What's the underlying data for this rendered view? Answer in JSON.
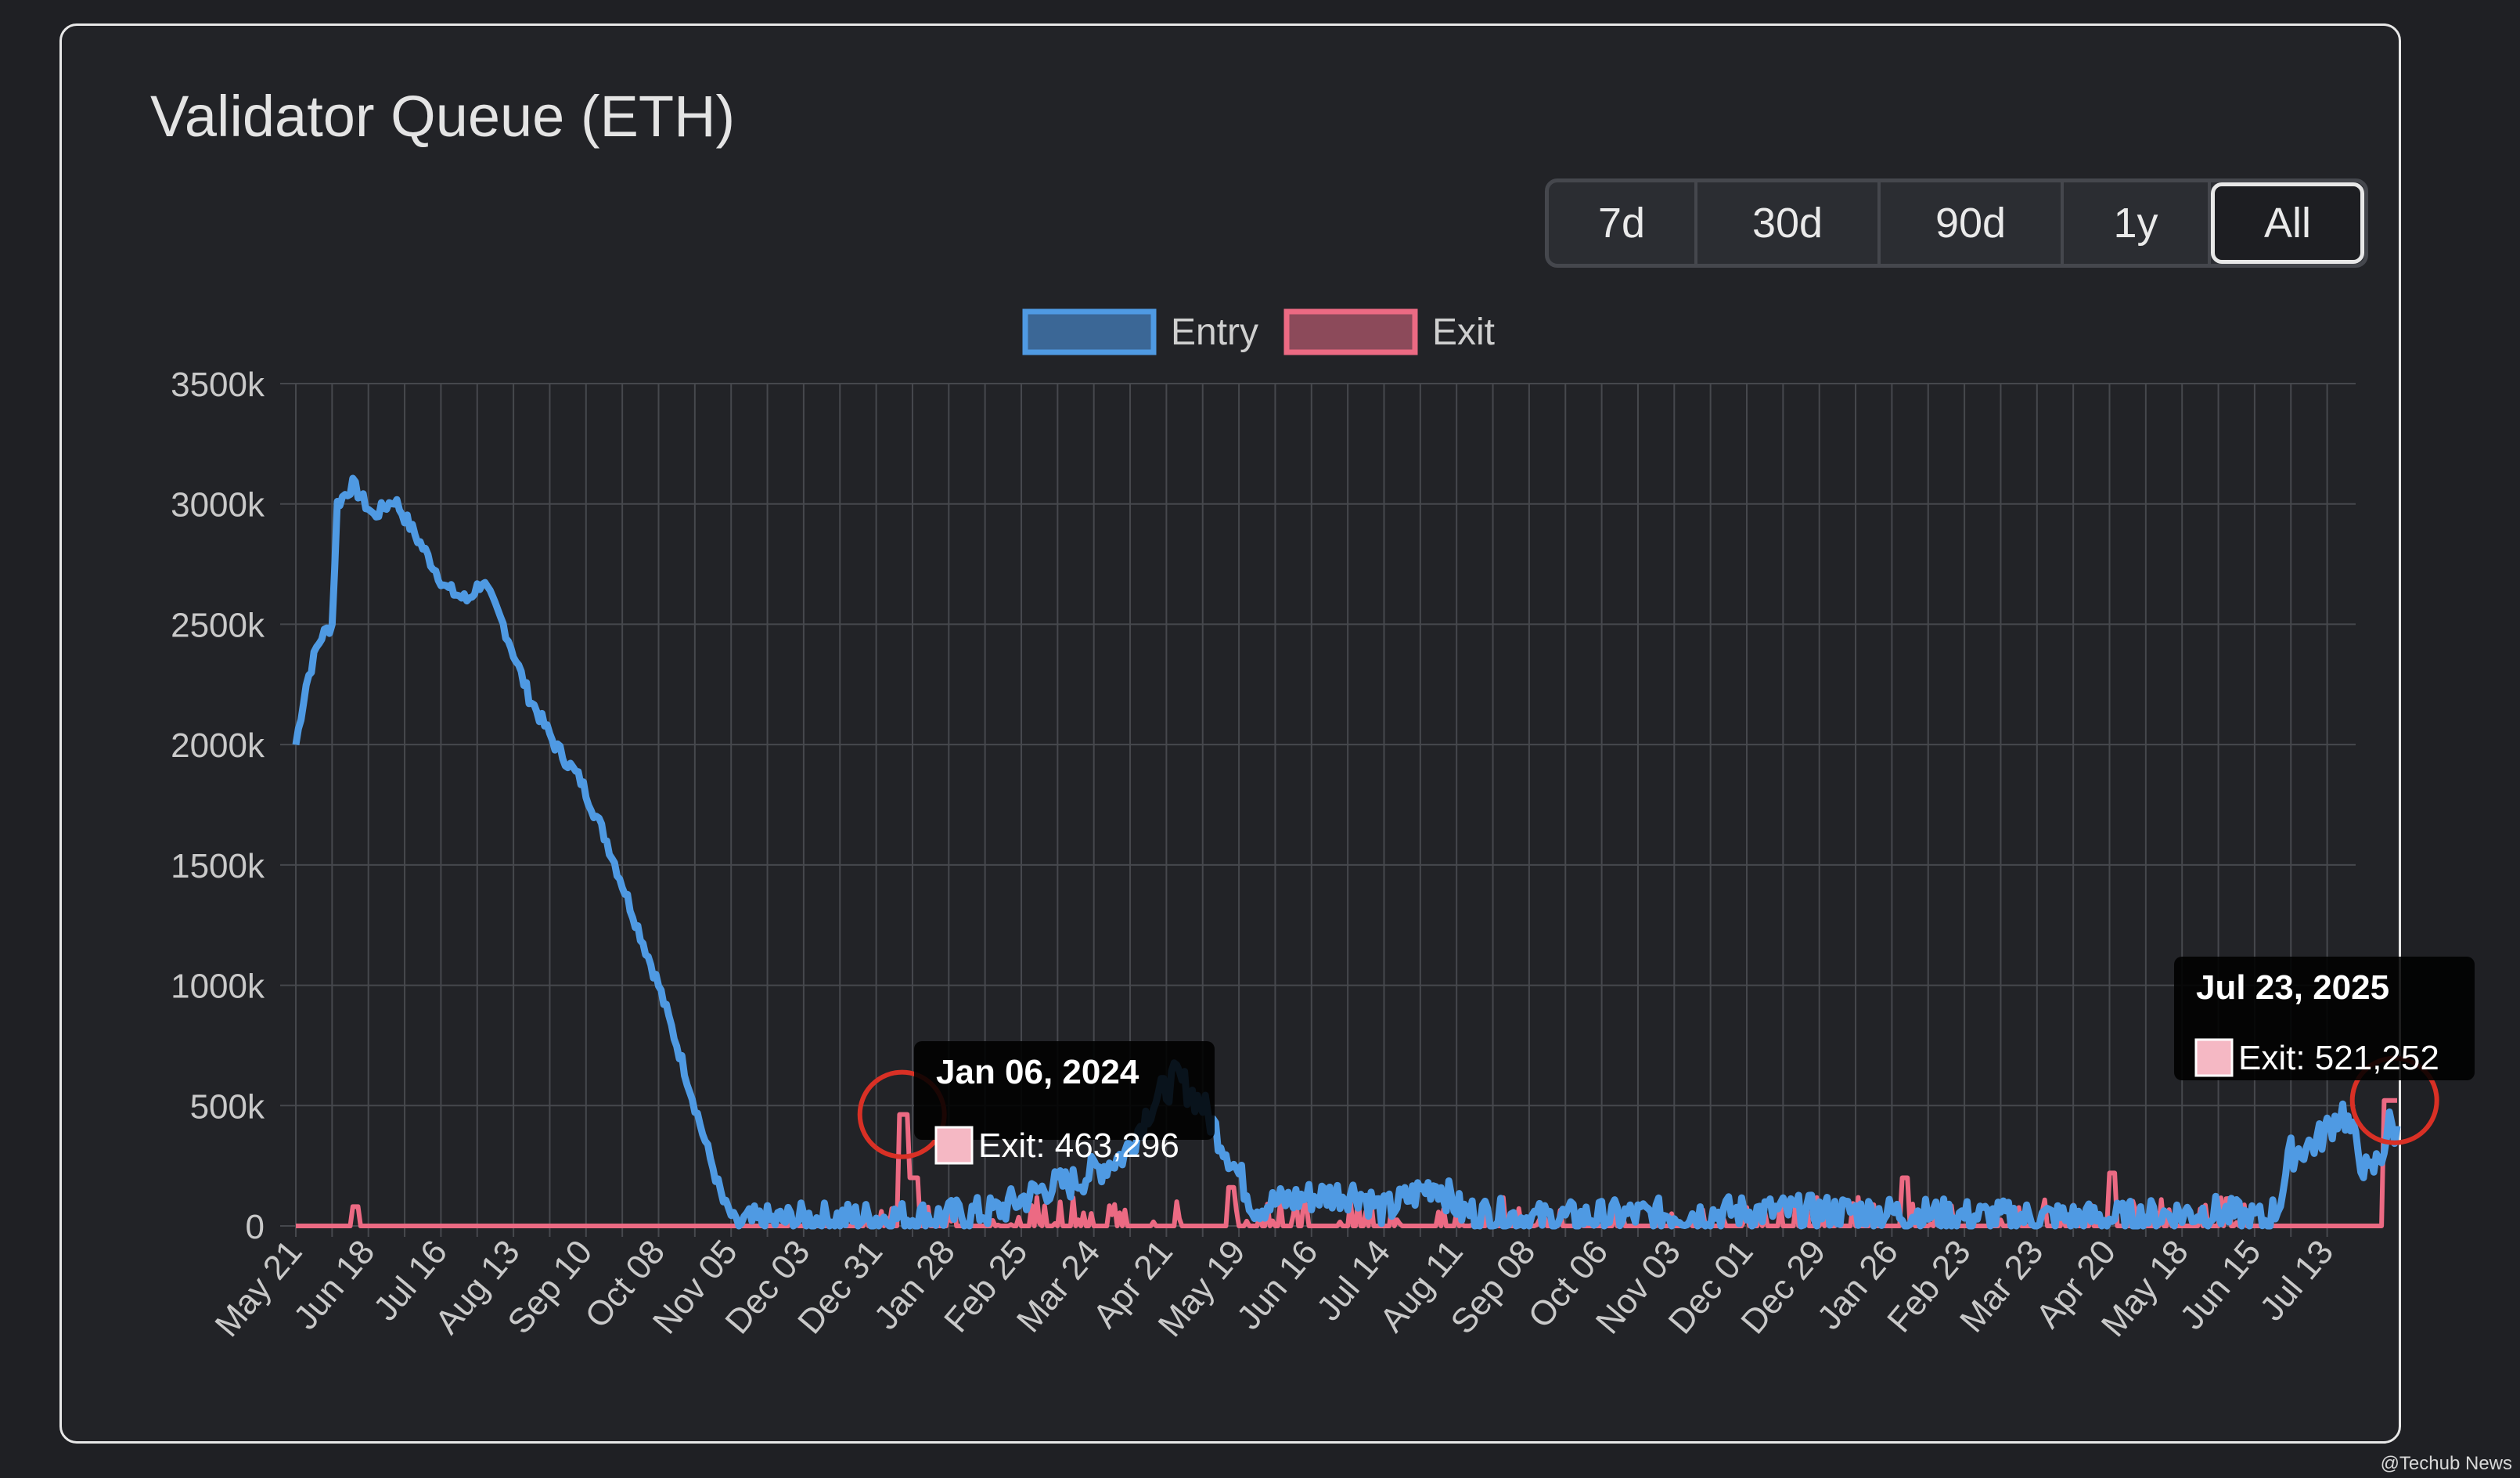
{
  "title": "Validator Queue (ETH)",
  "range_buttons": [
    {
      "label": "7d",
      "active": false
    },
    {
      "label": "30d",
      "active": false
    },
    {
      "label": "90d",
      "active": false
    },
    {
      "label": "1y",
      "active": false
    },
    {
      "label": "All",
      "active": true
    }
  ],
  "watermark": "@Techub News",
  "colors": {
    "entry": "#4f9ae3",
    "exit": "#ec6a83",
    "grid": "#46484d",
    "highlight_circle": "#d93025"
  },
  "tooltips": [
    {
      "date": "Jan 06, 2024",
      "label": "Exit: 463,296"
    },
    {
      "date": "Jul 23, 2025",
      "label": "Exit: 521,252"
    }
  ],
  "chart_data": {
    "type": "line",
    "title": "Validator Queue (ETH)",
    "legend": {
      "position": "top",
      "entries": [
        "Entry",
        "Exit"
      ]
    },
    "grid": true,
    "ylim": [
      0,
      3500000
    ],
    "y_ticks": [
      "0",
      "500k",
      "1000k",
      "1500k",
      "2000k",
      "2500k",
      "3000k",
      "3500k"
    ],
    "x_ticks": [
      "May 21",
      "Jun 18",
      "Jul 16",
      "Aug 13",
      "Sep 10",
      "Oct 08",
      "Nov 05",
      "Dec 03",
      "Dec 31",
      "Jan 28",
      "Feb 25",
      "Mar 24",
      "Apr 21",
      "May 19",
      "Jun 16",
      "Jul 14",
      "Aug 11",
      "Sep 08",
      "Oct 06",
      "Nov 03",
      "Dec 01",
      "Dec 29",
      "Jan 26",
      "Feb 23",
      "Mar 23",
      "Apr 20",
      "May 18",
      "Jun 15",
      "Jul 13"
    ],
    "series": [
      {
        "name": "Entry",
        "x": [
          0,
          0.4,
          1,
          1.5,
          2,
          2.5,
          3,
          3.5,
          4,
          4.5,
          5,
          5.5,
          6,
          6.5,
          7,
          7.5,
          8,
          8.5,
          9,
          9.5,
          10,
          11,
          12,
          13,
          14,
          15,
          16,
          17,
          18,
          19,
          20,
          21,
          22,
          23,
          24,
          25,
          26,
          27,
          28,
          29,
          30,
          31,
          32,
          33,
          34,
          35,
          36,
          37,
          38,
          39,
          40,
          41,
          42,
          43,
          44,
          45,
          46,
          47,
          48,
          49,
          50,
          51,
          52,
          53,
          54,
          55,
          56,
          57,
          58,
          59,
          60,
          61,
          62,
          63,
          64,
          65,
          66,
          67,
          68,
          69,
          70,
          71,
          72,
          73,
          74,
          75,
          76,
          77,
          78,
          79,
          80,
          81,
          82,
          83,
          84,
          85,
          86,
          87,
          88,
          89,
          90,
          91,
          92,
          93,
          94,
          95,
          96,
          97,
          98,
          99,
          100,
          101,
          102,
          103,
          104,
          105,
          106,
          107,
          108,
          109,
          110,
          111,
          112,
          113,
          114,
          115,
          116,
          117,
          118,
          119,
          120,
          121,
          122,
          123,
          124,
          125,
          126,
          127,
          128,
          129,
          130,
          131,
          132,
          133,
          134,
          135,
          136,
          137,
          138,
          139,
          140,
          141,
          142,
          143,
          144,
          145,
          146,
          147,
          148,
          149,
          150,
          151,
          152,
          153,
          154,
          155,
          156,
          157,
          158,
          159,
          160,
          161,
          162,
          163,
          164,
          165,
          166,
          167,
          168,
          169,
          170,
          171,
          172,
          173,
          174,
          175,
          176,
          177,
          178,
          179,
          180,
          181,
          182,
          183,
          184,
          185,
          186,
          187,
          188,
          189,
          190,
          191,
          192,
          193,
          194,
          195,
          196,
          197,
          198,
          199,
          200,
          201,
          202,
          203,
          204,
          205,
          206,
          207,
          208,
          209,
          210,
          211,
          212,
          213,
          214,
          215,
          216,
          217,
          218,
          219,
          220,
          221,
          222,
          223,
          224,
          225,
          226,
          227,
          228,
          229,
          230,
          231,
          232,
          233,
          234,
          235,
          236,
          237,
          238,
          239,
          240,
          241,
          242,
          243,
          244,
          245,
          246,
          247,
          248,
          249,
          250,
          251,
          252,
          253,
          254,
          255,
          256,
          257,
          258,
          259,
          260,
          261,
          262,
          263,
          264,
          265,
          266,
          267,
          268,
          269,
          270,
          271,
          272,
          273,
          274,
          275,
          276,
          277,
          278,
          279,
          280,
          281,
          282,
          283,
          284,
          285,
          286,
          287,
          288,
          289,
          290,
          291,
          292,
          293,
          294,
          295,
          296,
          297,
          298,
          299,
          300,
          301,
          302,
          303,
          304,
          305,
          306,
          307,
          308,
          309,
          310,
          311,
          312,
          313,
          314,
          315,
          316,
          317,
          318,
          319,
          320,
          321,
          322,
          323,
          324,
          325,
          326,
          327,
          328,
          329,
          330,
          331,
          332,
          333,
          334,
          335,
          336,
          337,
          338,
          339,
          340,
          341,
          342,
          343,
          344,
          345,
          346,
          347,
          348,
          349,
          350,
          351,
          352,
          353,
          354,
          355,
          356,
          357,
          358,
          359,
          360,
          361,
          362,
          363,
          364,
          365,
          366,
          367,
          368,
          369,
          370,
          371,
          372,
          373,
          374,
          375,
          376,
          377,
          378,
          379,
          380,
          381,
          382,
          383,
          384,
          385,
          386,
          387,
          388,
          389,
          390,
          391,
          392,
          393,
          394,
          395,
          396,
          397,
          398,
          399,
          400,
          401,
          402,
          403,
          404,
          405,
          406,
          407,
          408,
          409,
          410,
          411,
          412,
          413,
          414,
          415,
          416,
          417,
          418,
          419,
          420,
          421,
          422,
          423,
          424,
          425,
          426,
          427,
          428,
          429,
          430,
          431,
          432,
          433,
          434,
          435,
          436,
          437,
          438,
          439,
          440,
          441,
          442,
          443,
          444,
          445,
          446,
          447,
          448,
          449,
          450,
          451,
          452,
          453,
          454,
          455,
          456,
          457,
          458,
          459,
          460,
          461,
          462,
          463,
          464,
          465,
          466,
          467,
          468,
          469,
          470,
          471,
          472,
          473,
          474,
          475,
          476,
          477,
          478,
          479,
          480,
          481,
          482,
          483,
          484,
          485,
          486,
          487,
          488,
          489,
          490,
          491,
          492,
          493,
          494,
          495,
          496,
          497,
          498,
          499,
          500,
          501,
          502,
          503,
          504,
          505,
          506,
          507,
          508,
          509,
          510,
          511,
          512,
          513,
          514,
          515,
          516,
          517,
          518,
          519,
          520,
          521,
          522,
          523,
          524,
          525,
          526,
          527,
          528,
          529,
          530,
          531,
          532,
          533,
          534,
          535,
          536,
          537,
          538,
          539,
          540,
          541,
          542,
          543,
          544,
          545,
          546,
          547,
          548,
          549,
          550,
          551,
          552,
          553,
          554,
          555,
          556,
          557,
          558,
          559,
          560,
          561,
          562,
          563,
          564,
          565,
          566,
          567,
          568,
          569,
          570,
          571,
          572,
          573,
          574,
          575,
          576,
          577,
          578,
          579,
          580,
          581,
          582,
          583,
          584,
          585,
          586,
          587,
          588,
          589,
          590,
          591,
          592,
          593,
          594,
          595,
          596,
          597,
          598,
          599,
          600,
          601,
          602,
          603,
          604,
          605,
          606,
          607,
          608,
          609,
          610,
          611,
          612,
          613,
          614,
          615,
          616,
          617,
          618,
          619,
          620,
          621,
          622,
          623,
          624,
          625,
          626,
          627,
          628,
          629,
          630,
          631,
          632,
          633,
          634,
          635,
          636,
          637,
          638,
          639,
          640,
          641,
          642,
          643,
          644,
          645,
          646,
          647,
          648,
          649,
          650,
          651,
          652,
          653,
          654,
          655,
          656,
          657,
          658,
          659,
          660,
          661,
          662,
          663,
          664,
          665,
          666,
          667,
          668,
          669,
          670,
          671,
          672,
          673,
          674,
          675,
          676,
          677,
          678,
          679,
          680,
          681,
          682,
          683,
          684,
          685,
          686,
          687,
          688,
          689,
          690,
          691,
          692,
          693,
          694,
          695,
          696,
          697,
          698,
          699,
          700,
          701,
          702,
          703,
          704,
          705,
          706,
          707,
          708,
          709,
          710,
          711,
          712,
          713,
          714,
          715,
          716,
          717,
          718,
          719,
          720,
          721,
          722,
          723,
          724,
          725,
          726,
          727,
          728,
          729,
          730,
          731,
          732,
          733,
          734,
          735,
          736,
          737,
          738,
          739,
          740,
          741,
          742,
          743,
          744,
          745,
          746,
          747,
          748,
          749,
          750,
          751,
          752,
          753,
          754,
          755,
          756,
          757,
          758,
          759,
          760,
          761,
          762,
          763,
          764,
          765,
          766,
          767,
          768,
          769,
          770,
          771,
          772,
          773,
          774,
          775,
          776,
          777,
          778,
          779,
          780,
          781,
          782,
          783,
          784,
          785,
          786,
          787,
          788,
          789,
          790,
          791,
          792,
          793,
          794,
          795,
          796,
          797,
          798,
          799,
          800,
          801,
          802,
          803,
          804,
          805,
          806,
          807,
          808,
          809,
          810,
          811
        ],
        "x_note_unused": null
      }
    ]
  }
}
